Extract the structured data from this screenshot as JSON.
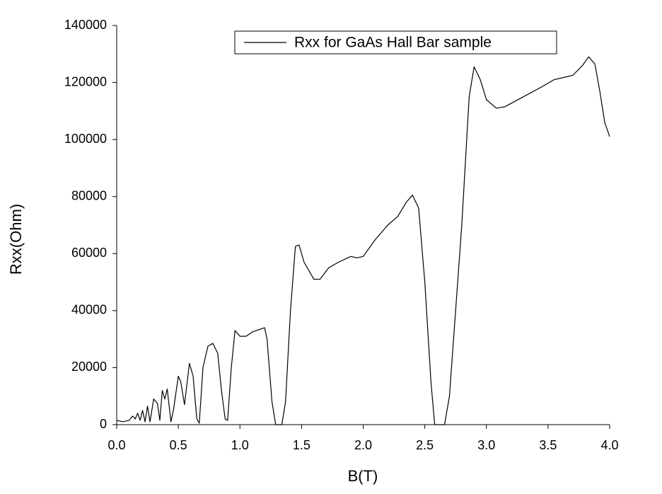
{
  "chart_data": {
    "type": "line",
    "xlabel": "B(T)",
    "ylabel": "Rxx(Ohm)",
    "xlim": [
      0,
      4
    ],
    "ylim": [
      0,
      140000
    ],
    "xticks": [
      {
        "value": 0,
        "label": "0.0"
      },
      0.5,
      {
        "value": 1,
        "label": "1.0"
      },
      1.5,
      {
        "value": 2,
        "label": "2.0"
      },
      2.5,
      {
        "value": 3,
        "label": "3.0"
      },
      3.5,
      {
        "value": 4,
        "label": "4.0"
      }
    ],
    "yticks": [
      0,
      20000,
      40000,
      60000,
      80000,
      100000,
      120000,
      140000
    ],
    "legend": "top-right",
    "x": [
      0.0,
      0.05,
      0.1,
      0.13,
      0.15,
      0.17,
      0.19,
      0.21,
      0.23,
      0.25,
      0.27,
      0.3,
      0.33,
      0.35,
      0.37,
      0.39,
      0.41,
      0.44,
      0.46,
      0.5,
      0.52,
      0.55,
      0.59,
      0.62,
      0.65,
      0.67,
      0.7,
      0.74,
      0.78,
      0.82,
      0.85,
      0.88,
      0.9,
      0.93,
      0.96,
      1.0,
      1.05,
      1.1,
      1.2,
      1.22,
      1.26,
      1.29,
      1.34,
      1.37,
      1.41,
      1.45,
      1.48,
      1.52,
      1.6,
      1.65,
      1.72,
      1.8,
      1.9,
      1.95,
      2.0,
      2.1,
      2.2,
      2.28,
      2.35,
      2.4,
      2.45,
      2.5,
      2.55,
      2.58,
      2.66,
      2.7,
      2.8,
      2.86,
      2.9,
      2.95,
      3.0,
      3.08,
      3.15,
      3.3,
      3.45,
      3.55,
      3.7,
      3.78,
      3.83,
      3.88,
      3.92,
      3.96,
      4.0
    ],
    "series": [
      {
        "name": "Rxx for GaAs Hall Bar sample",
        "color": "#000000",
        "values": [
          1500,
          1000,
          1500,
          3000,
          2000,
          4000,
          1500,
          5000,
          1000,
          6500,
          1000,
          9000,
          7500,
          1500,
          12000,
          9000,
          12500,
          1000,
          5000,
          17000,
          15000,
          7000,
          21500,
          17000,
          2000,
          500,
          20000,
          27500,
          28500,
          25000,
          12000,
          2000,
          1500,
          20000,
          33000,
          31000,
          31000,
          32500,
          34000,
          30000,
          8000,
          0,
          0,
          8000,
          40000,
          62500,
          63000,
          57000,
          51000,
          51000,
          55000,
          57000,
          59000,
          58500,
          59000,
          65000,
          70000,
          73000,
          78000,
          80500,
          76000,
          50000,
          15000,
          0,
          0,
          10000,
          70000,
          115000,
          125500,
          121000,
          114000,
          111000,
          111500,
          115000,
          118500,
          121000,
          122500,
          126000,
          129000,
          126500,
          117000,
          106000,
          101000
        ]
      }
    ]
  }
}
